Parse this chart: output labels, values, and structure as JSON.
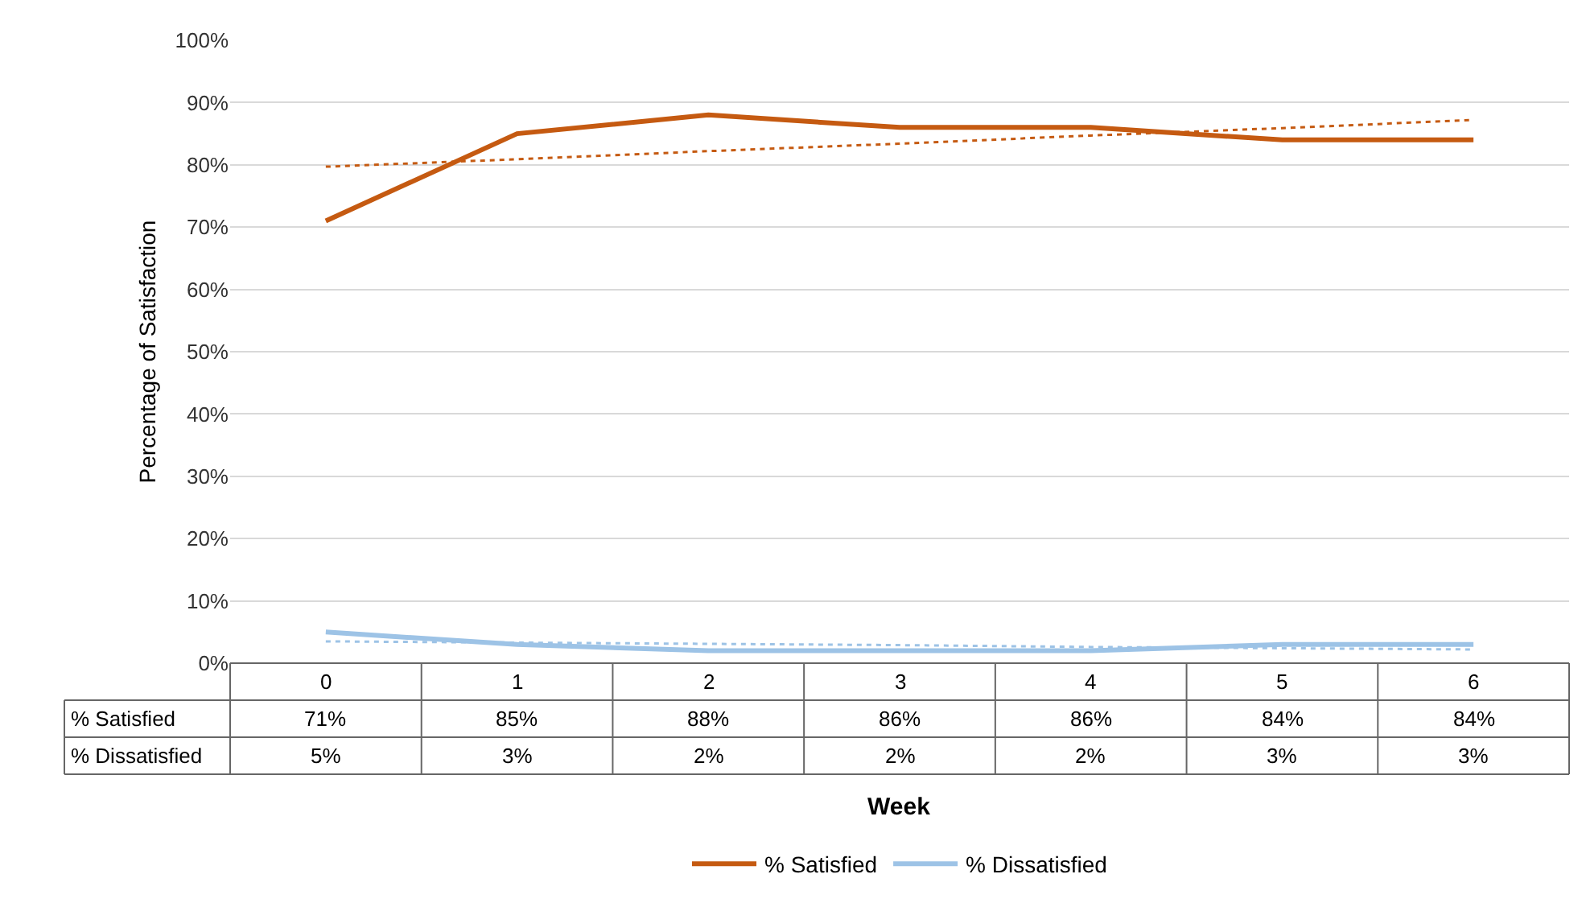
{
  "chart_data": {
    "type": "line",
    "xlabel": "Week",
    "ylabel": "Percentage of Satisfaction",
    "categories": [
      "0",
      "1",
      "2",
      "3",
      "4",
      "5",
      "6"
    ],
    "series": [
      {
        "name": "% Satisfied",
        "color": "#c55a11",
        "values": [
          71,
          85,
          88,
          86,
          86,
          84,
          84
        ],
        "value_labels": [
          "71%",
          "85%",
          "88%",
          "86%",
          "86%",
          "84%",
          "84%"
        ]
      },
      {
        "name": "% Dissatisfied",
        "color": "#9dc3e6",
        "values": [
          5,
          3,
          2,
          2,
          2,
          3,
          3
        ],
        "value_labels": [
          "5%",
          "3%",
          "2%",
          "2%",
          "2%",
          "3%",
          "3%"
        ]
      },
      {
        "type": "line",
        "color": "#c55a11",
        "values": [
          79.7,
          80.9,
          82.2,
          83.4,
          84.7,
          85.9,
          87.2
        ],
        "line_style": "dotted"
      },
      {
        "type": "line",
        "color": "#9dc3e6",
        "values": [
          3.5,
          3.3,
          3.1,
          2.9,
          2.6,
          2.4,
          2.2
        ],
        "line_style": "dotted"
      }
    ],
    "ylim": [
      0,
      100
    ],
    "yticks": [
      {
        "value": 0,
        "label": "0%"
      },
      {
        "value": 10,
        "label": "10%"
      },
      {
        "value": 20,
        "label": "20%"
      },
      {
        "value": 30,
        "label": "30%"
      },
      {
        "value": 40,
        "label": "40%"
      },
      {
        "value": 50,
        "label": "50%"
      },
      {
        "value": 60,
        "label": "60%"
      },
      {
        "value": 70,
        "label": "70%"
      },
      {
        "value": 80,
        "label": "80%"
      },
      {
        "value": 90,
        "label": "90%"
      },
      {
        "value": 100,
        "label": "100%"
      }
    ],
    "grid": "y",
    "legend": "bottom",
    "marker": "none",
    "line_style": "solid"
  }
}
